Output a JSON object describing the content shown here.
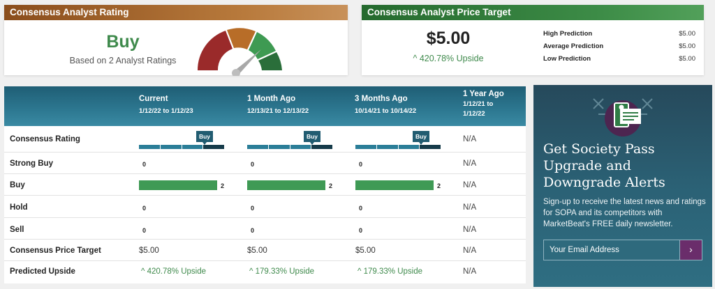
{
  "rating_card": {
    "title": "Consensus Analyst Rating",
    "rating": "Buy",
    "subtitle": "Based on 2 Analyst Ratings",
    "gauge_colors": [
      "#9a2a2a",
      "#b86d28",
      "#3e9a52",
      "#2a6e3a"
    ]
  },
  "price_target_card": {
    "title": "Consensus Analyst Price Target",
    "price": "$5.00",
    "upside": "420.78% Upside",
    "predictions": [
      {
        "label": "High Prediction",
        "value": "$5.00"
      },
      {
        "label": "Average Prediction",
        "value": "$5.00"
      },
      {
        "label": "Low Prediction",
        "value": "$5.00"
      }
    ]
  },
  "table": {
    "columns": [
      {
        "title": "Current",
        "range": "1/12/22 to 1/12/23"
      },
      {
        "title": "1 Month Ago",
        "range": "12/13/21 to 12/13/22"
      },
      {
        "title": "3 Months Ago",
        "range": "10/14/21 to 10/14/22"
      },
      {
        "title": "1 Year Ago",
        "range": "1/12/21 to 1/12/22"
      }
    ],
    "rows": {
      "consensus_rating": {
        "label": "Consensus Rating",
        "values": [
          "Buy",
          "Buy",
          "Buy",
          "N/A"
        ]
      },
      "strong_buy": {
        "label": "Strong Buy",
        "values": [
          "0",
          "0",
          "0",
          "N/A"
        ]
      },
      "buy": {
        "label": "Buy",
        "values": [
          "2",
          "2",
          "2",
          "N/A"
        ]
      },
      "hold": {
        "label": "Hold",
        "values": [
          "0",
          "0",
          "0",
          "N/A"
        ]
      },
      "sell": {
        "label": "Sell",
        "values": [
          "0",
          "0",
          "0",
          "N/A"
        ]
      },
      "price_target": {
        "label": "Consensus Price Target",
        "values": [
          "$5.00",
          "$5.00",
          "$5.00",
          "N/A"
        ]
      },
      "predicted_upside": {
        "label": "Predicted Upside",
        "values": [
          "420.78% Upside",
          "179.33% Upside",
          "179.33% Upside",
          "N/A"
        ]
      }
    }
  },
  "promo": {
    "title": "Get Society Pass Upgrade and Downgrade Alerts",
    "text": "Sign-up to receive the latest news and ratings for SOPA and its competitors with MarketBeat's FREE daily newsletter.",
    "email_placeholder": "Your Email Address",
    "submit_icon": "chevron-right-icon"
  }
}
